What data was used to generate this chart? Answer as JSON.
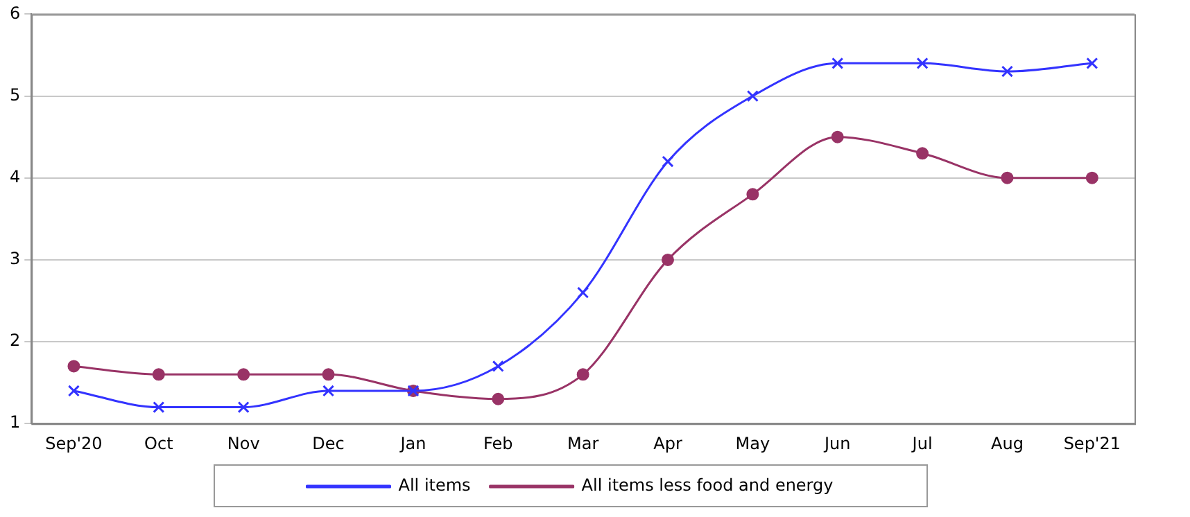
{
  "chart_data": {
    "type": "line",
    "categories": [
      "Sep'20",
      "Oct",
      "Nov",
      "Dec",
      "Jan",
      "Feb",
      "Mar",
      "Apr",
      "May",
      "Jun",
      "Jul",
      "Aug",
      "Sep'21"
    ],
    "series": [
      {
        "name": "All items",
        "color": "#3333ff",
        "marker": "cross",
        "values": [
          1.4,
          1.2,
          1.2,
          1.4,
          1.4,
          1.7,
          2.6,
          4.2,
          5.0,
          5.4,
          5.4,
          5.3,
          5.4
        ]
      },
      {
        "name": "All items less food and energy",
        "color": "#993366",
        "marker": "circle",
        "values": [
          1.7,
          1.6,
          1.6,
          1.6,
          1.4,
          1.3,
          1.6,
          3.0,
          3.8,
          4.5,
          4.3,
          4.0,
          4.0
        ]
      }
    ],
    "ylim": [
      1,
      6
    ],
    "yticks": [
      1,
      2,
      3,
      4,
      5,
      6
    ],
    "grid": "y",
    "legend": "bottom"
  }
}
